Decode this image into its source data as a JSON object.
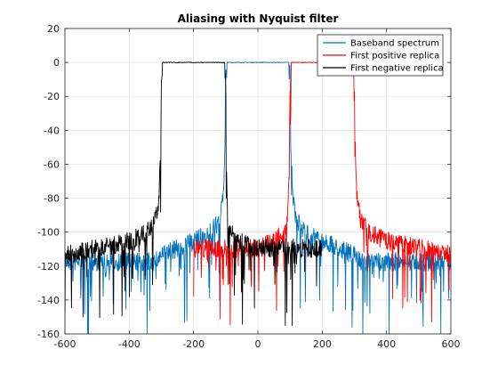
{
  "chart_data": {
    "type": "line",
    "title": "Aliasing with Nyquist filter",
    "xlabel": "",
    "ylabel": "",
    "xlim": [
      -600,
      600
    ],
    "ylim": [
      -160,
      20
    ],
    "xticks": [
      -600,
      -400,
      -200,
      0,
      200,
      400,
      600
    ],
    "yticks": [
      20,
      0,
      -20,
      -40,
      -60,
      -80,
      -100,
      -120,
      -140,
      -160
    ],
    "grid": true,
    "legend_position": "top-right",
    "series": [
      {
        "name": "Baseband spectrum",
        "color": "#0072BD",
        "passband": [
          -100,
          100
        ],
        "passband_level": 0,
        "x": [
          -600,
          -320,
          -300,
          -250,
          -200,
          -150,
          -120,
          -108,
          -102,
          -100,
          -95,
          95,
          100,
          102,
          108,
          120,
          150,
          200,
          250,
          300,
          320,
          600
        ],
        "y": [
          -112,
          -112,
          -108,
          -104,
          -100,
          -95,
          -88,
          -75,
          -40,
          0,
          0,
          0,
          0,
          -40,
          -75,
          -88,
          -95,
          -100,
          -104,
          -108,
          -112,
          -112
        ],
        "stopband_floor": -112,
        "notch_depth": -160
      },
      {
        "name": "First positive replica",
        "color": "#FF0000",
        "passband": [
          100,
          300
        ],
        "passband_level": 0,
        "x": [
          -200,
          0,
          50,
          80,
          92,
          98,
          100,
          105,
          295,
          300,
          302,
          308,
          320,
          350,
          400,
          600
        ],
        "y": [
          -104,
          -104,
          -100,
          -95,
          -88,
          -60,
          0,
          0,
          0,
          0,
          -40,
          -75,
          -88,
          -95,
          -100,
          -108
        ],
        "stopband_floor": -112,
        "notch_depth": -155
      },
      {
        "name": "First negative replica",
        "color": "#000000",
        "passband": [
          -300,
          -100
        ],
        "passband_level": 0,
        "x": [
          -600,
          -400,
          -350,
          -320,
          -308,
          -302,
          -300,
          -295,
          -105,
          -100,
          -98,
          -92,
          -80,
          -50,
          0,
          200
        ],
        "y": [
          -108,
          -100,
          -95,
          -88,
          -75,
          -40,
          0,
          0,
          0,
          0,
          -60,
          -88,
          -95,
          -100,
          -104,
          -104
        ],
        "stopband_floor": -112,
        "notch_depth": -155
      }
    ]
  }
}
